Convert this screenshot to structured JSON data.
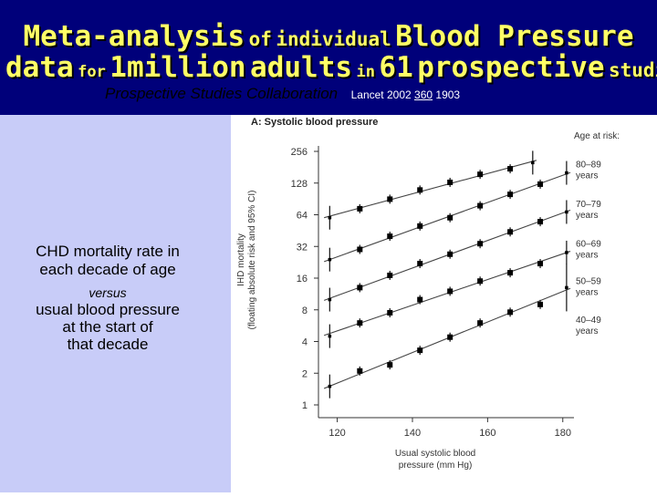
{
  "header": {
    "title_line1": [
      {
        "text": "Meta-analysis",
        "size": "big"
      },
      {
        "text": "of",
        "size": "med"
      },
      {
        "text": "individual",
        "size": "med"
      },
      {
        "text": "Blood Pressure",
        "size": "big"
      }
    ],
    "title_line2": [
      {
        "text": "data",
        "size": "big"
      },
      {
        "text": "for",
        "size": "sml"
      },
      {
        "text": "1million",
        "size": "big"
      },
      {
        "text": "adults",
        "size": "big"
      },
      {
        "text": "in",
        "size": "sml"
      },
      {
        "text": "61",
        "size": "big"
      },
      {
        "text": "prospective",
        "size": "big"
      },
      {
        "text": "studies",
        "size": "med"
      }
    ],
    "collaboration": "Prospective Studies Collaboration",
    "citation_journal": "Lancet 2002",
    "citation_volume": "360",
    "citation_page": "1903"
  },
  "sidebar": {
    "line1": "CHD mortality rate in",
    "line2": "each decade of  age",
    "line3": "versus",
    "line4": "usual blood  pressure",
    "line5": "at the start of",
    "line6": "that decade"
  },
  "chart_data": {
    "type": "scatter",
    "title": "A: Systolic blood pressure",
    "xlabel": "Usual systolic blood pressure (mm Hg)",
    "xlabel_lines": [
      "Usual systolic blood",
      "pressure (mm Hg)"
    ],
    "ylabel": "IHD mortality (floating absolute risk and 95% CI)",
    "ylabel_lines": [
      "IHD mortality",
      "(floating absolute risk and 95% CI)"
    ],
    "y_scale": "log2",
    "ylim": [
      1,
      256
    ],
    "yticks": [
      1,
      2,
      4,
      8,
      16,
      32,
      64,
      128,
      256
    ],
    "xlim": [
      115,
      182
    ],
    "xticks": [
      120,
      140,
      160,
      180
    ],
    "legend_title": "Age at risk:",
    "legend_unit": "years",
    "grid": false,
    "series": [
      {
        "name": "80–89",
        "x": [
          118,
          126,
          134,
          142,
          150,
          158,
          166,
          172
        ],
        "y": [
          60,
          73,
          90,
          110,
          130,
          155,
          175,
          200
        ]
      },
      {
        "name": "70–79",
        "x": [
          118,
          126,
          134,
          142,
          150,
          158,
          166,
          174,
          181
        ],
        "y": [
          24,
          30,
          40,
          50,
          60,
          78,
          100,
          125,
          160
        ]
      },
      {
        "name": "60–69",
        "x": [
          118,
          126,
          134,
          142,
          150,
          158,
          166,
          174,
          181
        ],
        "y": [
          10,
          13,
          17,
          22,
          27,
          34,
          44,
          55,
          68
        ]
      },
      {
        "name": "50–59",
        "x": [
          118,
          126,
          134,
          142,
          150,
          158,
          166,
          174,
          181
        ],
        "y": [
          4.5,
          6,
          7.5,
          10,
          12,
          15,
          18,
          22,
          28
        ]
      },
      {
        "name": "40–49",
        "x": [
          118,
          126,
          134,
          142,
          150,
          158,
          166,
          174,
          181
        ],
        "y": [
          1.5,
          2.1,
          2.4,
          3.3,
          4.4,
          6,
          7.6,
          9,
          13
        ]
      }
    ],
    "legend_label_y": [
      180,
      76,
      32,
      14,
      6
    ]
  }
}
